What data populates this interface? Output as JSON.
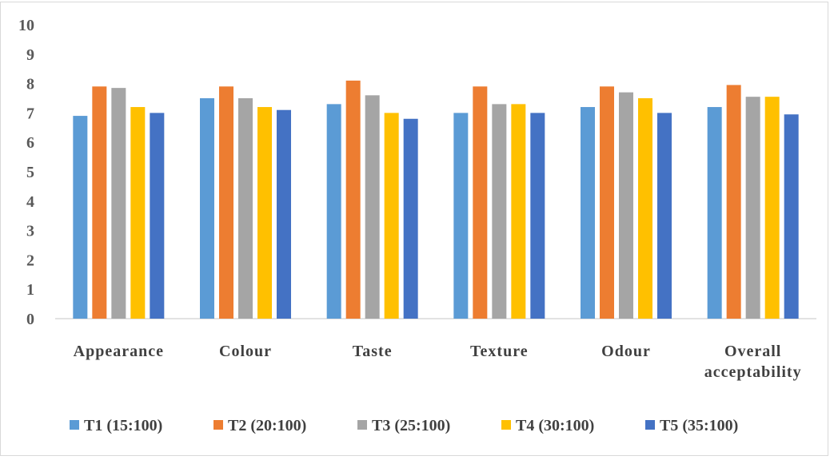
{
  "chart_data": {
    "type": "bar",
    "title": "",
    "xlabel": "",
    "ylabel": "",
    "ylim": [
      0,
      10
    ],
    "yticks": [
      "0",
      "1",
      "2",
      "3",
      "4",
      "5",
      "6",
      "7",
      "8",
      "9",
      "10"
    ],
    "grid": false,
    "legend_position": "bottom",
    "categories": [
      "Appearance",
      "Colour",
      "Taste",
      "Texture",
      "Odour",
      "Overall acceptability"
    ],
    "category_lines": [
      [
        "Appearance"
      ],
      [
        "Colour"
      ],
      [
        "Taste"
      ],
      [
        "Texture"
      ],
      [
        "Odour"
      ],
      [
        "Overall",
        "acceptability"
      ]
    ],
    "series": [
      {
        "name": "T1 (15:100)",
        "color": "#5B9BD5",
        "values": [
          6.9,
          7.5,
          7.3,
          7.0,
          7.2,
          7.2
        ]
      },
      {
        "name": "T2 (20:100)",
        "color": "#ED7D31",
        "values": [
          7.9,
          7.9,
          8.1,
          7.9,
          7.9,
          7.95
        ]
      },
      {
        "name": "T3 (25:100)",
        "color": "#A5A5A5",
        "values": [
          7.85,
          7.5,
          7.6,
          7.3,
          7.7,
          7.55
        ]
      },
      {
        "name": "T4 (30:100)",
        "color": "#FFC000",
        "values": [
          7.2,
          7.2,
          7.0,
          7.3,
          7.5,
          7.55
        ]
      },
      {
        "name": "T5 (35:100)",
        "color": "#4472C4",
        "values": [
          7.0,
          7.1,
          6.8,
          7.0,
          7.0,
          6.95
        ]
      }
    ]
  }
}
